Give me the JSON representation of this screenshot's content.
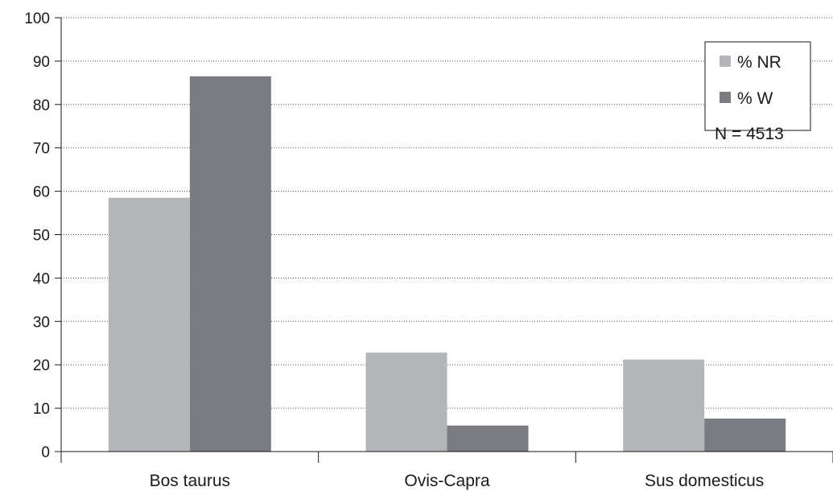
{
  "chart_data": {
    "type": "bar",
    "categories": [
      "Bos taurus",
      "Ovis-Capra",
      "Sus domesticus"
    ],
    "series": [
      {
        "name": "% NR",
        "values": [
          58.5,
          22.8,
          21.2
        ],
        "color": "#b4b5b9"
      },
      {
        "name": "% W",
        "values": [
          86.5,
          6.0,
          7.6
        ],
        "color": "#7b7c81"
      }
    ],
    "ylim": [
      0,
      100
    ],
    "yticks": [
      "0",
      "10",
      "20",
      "30",
      "40",
      "50",
      "60",
      "70",
      "80",
      "90",
      "100"
    ],
    "grid": true,
    "legend_position": "top-right",
    "annotation": "N = 4513"
  }
}
